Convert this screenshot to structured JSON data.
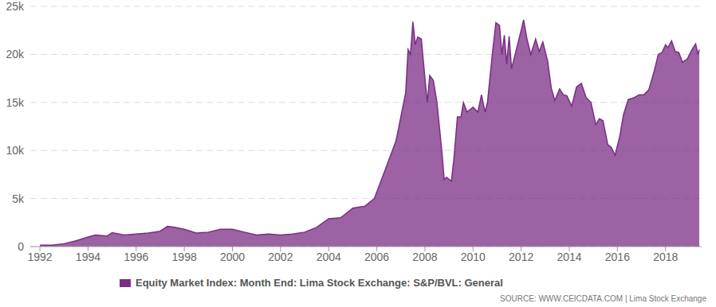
{
  "chart_data": {
    "type": "area",
    "source": "SOURCE: WWW.CEICDATA.COM | Lima Stock Exchange",
    "x": [
      1992.0,
      1992.5,
      1993.0,
      1993.5,
      1994.0,
      1994.3,
      1994.8,
      1995.0,
      1995.5,
      1996.0,
      1996.5,
      1997.0,
      1997.3,
      1997.6,
      1998.0,
      1998.5,
      1999.0,
      1999.5,
      2000.0,
      2000.5,
      2001.0,
      2001.5,
      2002.0,
      2002.5,
      2003.0,
      2003.5,
      2004.0,
      2004.5,
      2005.0,
      2005.5,
      2005.9,
      2006.2,
      2006.5,
      2006.8,
      2007.0,
      2007.2,
      2007.3,
      2007.4,
      2007.5,
      2007.6,
      2007.7,
      2007.85,
      2008.0,
      2008.1,
      2008.2,
      2008.35,
      2008.5,
      2008.7,
      2008.8,
      2008.9,
      2009.1,
      2009.2,
      2009.35,
      2009.5,
      2009.6,
      2009.75,
      2010.0,
      2010.2,
      2010.35,
      2010.5,
      2010.6,
      2010.8,
      2010.95,
      2011.1,
      2011.2,
      2011.3,
      2011.4,
      2011.5,
      2011.6,
      2011.75,
      2011.9,
      2012.0,
      2012.1,
      2012.25,
      2012.4,
      2012.6,
      2012.75,
      2012.9,
      2013.1,
      2013.25,
      2013.4,
      2013.6,
      2013.75,
      2013.9,
      2014.1,
      2014.3,
      2014.5,
      2014.7,
      2014.9,
      2015.1,
      2015.25,
      2015.4,
      2015.6,
      2015.75,
      2015.9,
      2016.1,
      2016.25,
      2016.45,
      2016.7,
      2016.9,
      2017.1,
      2017.3,
      2017.5,
      2017.7,
      2017.85,
      2018.0,
      2018.1,
      2018.25,
      2018.4,
      2018.55,
      2018.7,
      2018.9,
      2019.1,
      2019.25,
      2019.35,
      2019.4
    ],
    "series": [
      {
        "name": "Equity Market Index: Month End: Lima Stock Exchange: S&P/BVL: General",
        "color": "#7b2d84",
        "values": [
          150,
          150,
          300,
          600,
          1000,
          1200,
          1100,
          1450,
          1200,
          1300,
          1400,
          1600,
          2100,
          2000,
          1800,
          1400,
          1500,
          1800,
          1800,
          1500,
          1200,
          1300,
          1200,
          1300,
          1500,
          2000,
          2900,
          3000,
          4000,
          4200,
          5000,
          7000,
          9000,
          11000,
          13500,
          16000,
          20500,
          20000,
          23400,
          21000,
          21800,
          21600,
          17500,
          15000,
          17800,
          17300,
          15000,
          10000,
          7000,
          7200,
          6800,
          9000,
          13500,
          13500,
          15000,
          14000,
          14500,
          14000,
          15800,
          14000,
          15000,
          20000,
          23300,
          23000,
          20000,
          22000,
          19000,
          21900,
          18500,
          20000,
          21500,
          22500,
          23600,
          21500,
          20000,
          21600,
          20300,
          21300,
          19300,
          16500,
          15200,
          16400,
          15800,
          15700,
          14600,
          16600,
          17000,
          15500,
          15000,
          12700,
          13300,
          13100,
          10600,
          10300,
          9500,
          11500,
          13700,
          15300,
          15500,
          15800,
          15800,
          16300,
          18000,
          20000,
          20200,
          21000,
          20700,
          21400,
          20300,
          20200,
          19200,
          19500,
          20500,
          21100,
          20000,
          20500
        ]
      }
    ],
    "xlim": [
      1991.6,
      2019.5
    ],
    "xticks": [
      1992,
      1994,
      1996,
      1998,
      2000,
      2002,
      2004,
      2006,
      2008,
      2010,
      2012,
      2014,
      2016,
      2018
    ],
    "ylim": [
      0,
      25000
    ],
    "yticks": [
      0,
      {
        "value": 5000,
        "label": "5k"
      },
      {
        "value": 10000,
        "label": "10k"
      },
      {
        "value": 15000,
        "label": "15k"
      },
      {
        "value": 20000,
        "label": "20k"
      },
      {
        "value": 25000,
        "label": "25k"
      }
    ],
    "grid": true,
    "legend": "bottom"
  }
}
